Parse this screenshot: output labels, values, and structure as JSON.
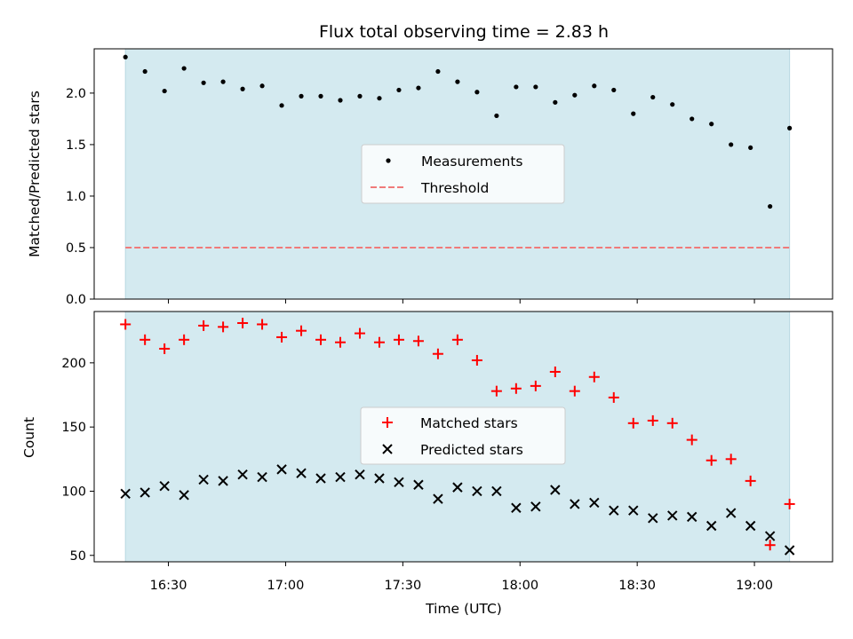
{
  "chart_data": [
    {
      "type": "scatter",
      "title": "Flux total observing time = 2.83 h",
      "xlabel": "",
      "ylabel": "Matched/Predicted stars",
      "xlim": [
        "16:11",
        "19:20"
      ],
      "ylim": [
        0,
        2.43
      ],
      "yticks": [
        "0.0",
        "0.5",
        "1.0",
        "1.5",
        "2.0"
      ],
      "grid": false,
      "legend_position": "center",
      "shaded_interval": {
        "start": "16:19",
        "end": "19:09",
        "color": "#d4eaf0"
      },
      "x": [
        "16:19",
        "16:24",
        "16:29",
        "16:34",
        "16:39",
        "16:44",
        "16:49",
        "16:54",
        "16:59",
        "17:04",
        "17:09",
        "17:14",
        "17:19",
        "17:24",
        "17:29",
        "17:34",
        "17:39",
        "17:44",
        "17:49",
        "17:54",
        "17:59",
        "18:04",
        "18:09",
        "18:14",
        "18:19",
        "18:24",
        "18:29",
        "18:34",
        "18:39",
        "18:44",
        "18:49",
        "18:54",
        "18:59",
        "19:04",
        "19:09"
      ],
      "series": [
        {
          "name": "Measurements",
          "marker": "dot",
          "color": "#000000",
          "values": [
            2.35,
            2.21,
            2.02,
            2.24,
            2.1,
            2.11,
            2.04,
            2.07,
            1.88,
            1.97,
            1.97,
            1.93,
            1.97,
            1.95,
            2.03,
            2.05,
            2.21,
            2.11,
            2.01,
            1.78,
            2.06,
            2.06,
            1.91,
            1.98,
            2.07,
            2.03,
            1.8,
            1.96,
            1.89,
            1.75,
            1.7,
            1.5,
            1.47,
            0.9,
            1.66
          ]
        },
        {
          "name": "Threshold",
          "marker": "dashed-line",
          "color": "#f07a7a",
          "values": [
            0.5
          ]
        }
      ]
    },
    {
      "type": "scatter",
      "title": "",
      "xlabel": "Time (UTC)",
      "ylabel": "Count",
      "xlim": [
        "16:11",
        "19:20"
      ],
      "ylim": [
        45,
        240
      ],
      "yticks": [
        "50",
        "100",
        "150",
        "200"
      ],
      "xticks": [
        "16:30",
        "17:00",
        "17:30",
        "18:00",
        "18:30",
        "19:00"
      ],
      "grid": false,
      "legend_position": "center",
      "shaded_interval": {
        "start": "16:19",
        "end": "19:09",
        "color": "#d4eaf0"
      },
      "x": [
        "16:19",
        "16:24",
        "16:29",
        "16:34",
        "16:39",
        "16:44",
        "16:49",
        "16:54",
        "16:59",
        "17:04",
        "17:09",
        "17:14",
        "17:19",
        "17:24",
        "17:29",
        "17:34",
        "17:39",
        "17:44",
        "17:49",
        "17:54",
        "17:59",
        "18:04",
        "18:09",
        "18:14",
        "18:19",
        "18:24",
        "18:29",
        "18:34",
        "18:39",
        "18:44",
        "18:49",
        "18:54",
        "18:59",
        "19:04",
        "19:09"
      ],
      "series": [
        {
          "name": "Matched stars",
          "marker": "plus",
          "color": "#ff0000",
          "values": [
            230,
            218,
            211,
            218,
            229,
            228,
            231,
            230,
            220,
            225,
            218,
            216,
            223,
            216,
            218,
            217,
            207,
            218,
            202,
            178,
            180,
            182,
            193,
            178,
            189,
            173,
            153,
            155,
            153,
            140,
            124,
            125,
            108,
            58,
            90
          ]
        },
        {
          "name": "Predicted stars",
          "marker": "x",
          "color": "#000000",
          "values": [
            98,
            99,
            104,
            97,
            109,
            108,
            113,
            111,
            117,
            114,
            110,
            111,
            113,
            110,
            107,
            105,
            94,
            103,
            100,
            100,
            87,
            88,
            101,
            90,
            91,
            85,
            85,
            79,
            81,
            80,
            73,
            83,
            73,
            65,
            54
          ]
        }
      ]
    }
  ]
}
